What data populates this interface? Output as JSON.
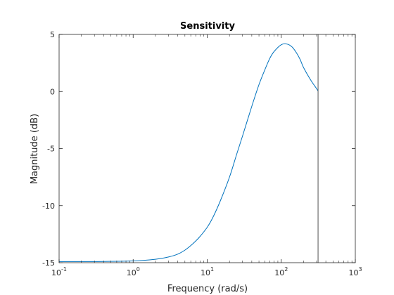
{
  "chart_data": {
    "type": "line",
    "title": "Sensitivity",
    "xlabel": "Frequency  (rad/s)",
    "ylabel": "Magnitude (dB)",
    "x_scale": "log",
    "xlim": [
      0.1,
      1000
    ],
    "ylim": [
      -15,
      5
    ],
    "x_ticks": [
      {
        "value": 0.1,
        "base": "10",
        "exponent": "-1"
      },
      {
        "value": 1,
        "base": "10",
        "exponent": "0"
      },
      {
        "value": 10,
        "base": "10",
        "exponent": "1"
      },
      {
        "value": 100,
        "base": "10",
        "exponent": "2"
      },
      {
        "value": 1000,
        "base": "10",
        "exponent": "3"
      }
    ],
    "y_ticks": [
      {
        "value": 5,
        "label": "5"
      },
      {
        "value": 0,
        "label": "0"
      },
      {
        "value": -5,
        "label": "-5"
      },
      {
        "value": -10,
        "label": "-10"
      },
      {
        "value": -15,
        "label": "-15"
      }
    ],
    "grid": false,
    "vertical_line": {
      "x": 314
    },
    "series": [
      {
        "color": "#0072BD",
        "x": [
          0.1,
          0.3,
          1,
          2,
          3,
          4,
          5,
          6,
          7,
          8,
          10,
          12,
          15,
          20,
          25,
          30,
          40,
          50,
          60,
          70,
          80,
          100,
          120,
          140,
          160,
          180,
          200,
          250,
          300,
          314
        ],
        "y": [
          -14.9,
          -14.9,
          -14.85,
          -14.7,
          -14.5,
          -14.25,
          -13.9,
          -13.5,
          -13.1,
          -12.7,
          -11.9,
          -11.0,
          -9.6,
          -7.5,
          -5.5,
          -3.9,
          -1.3,
          0.6,
          1.9,
          2.9,
          3.5,
          4.1,
          4.15,
          3.9,
          3.4,
          2.8,
          2.1,
          1.0,
          0.25,
          0.05
        ]
      }
    ]
  }
}
